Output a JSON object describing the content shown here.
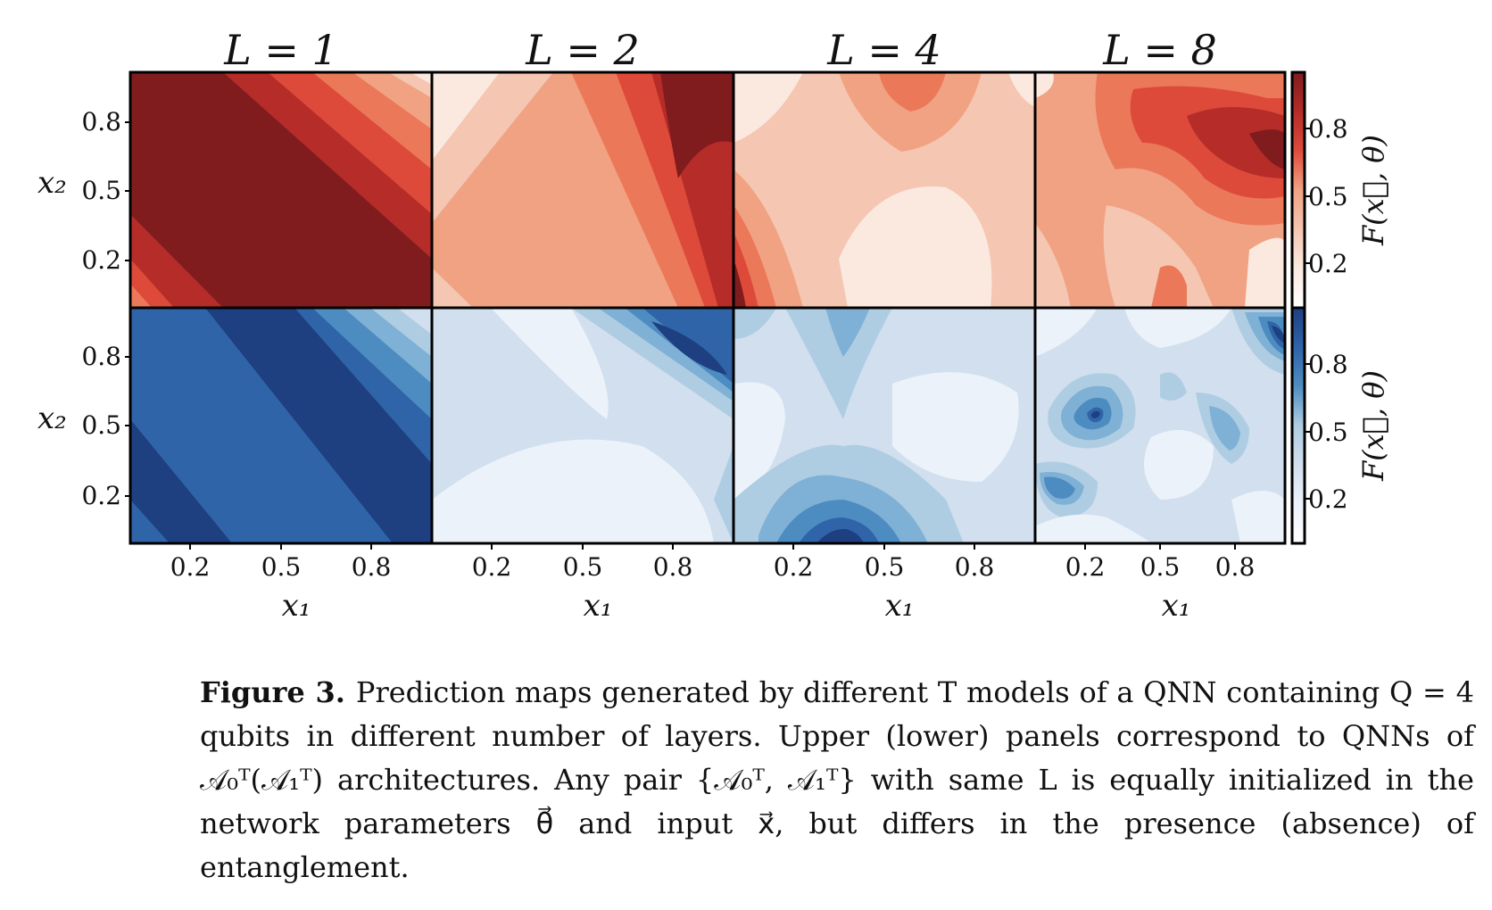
{
  "chart_data": {
    "type": "heatmap",
    "title": "",
    "column_titles": [
      "L = 1",
      "L = 2",
      "L = 4",
      "L = 8"
    ],
    "row_ylabel": "x₂",
    "xlabel": "x₁",
    "xticks": [
      "0.2",
      "0.5",
      "0.8"
    ],
    "yticks": [
      "0.8",
      "0.5",
      "0.2"
    ],
    "xtick_values": [
      0.2,
      0.5,
      0.8
    ],
    "ytick_values": [
      0.8,
      0.5,
      0.2
    ],
    "xlim": [
      0,
      1
    ],
    "ylim": [
      0,
      1
    ],
    "colorbar_label": "F(x⃗, θ)",
    "colorbar_ticks": [
      "0.8",
      "0.5",
      "0.2"
    ],
    "colorbar_tick_values": [
      0.8,
      0.5,
      0.2
    ],
    "rows": [
      {
        "name": "A0T (entangled)",
        "colormap": [
          "#fbe9e0",
          "#f5c6b1",
          "#f0a283",
          "#eb7858",
          "#dd4a3a",
          "#b52c29",
          "#801c1e"
        ],
        "panels": [
          {
            "L": 1,
            "description": "diagonal bands, high in lower-left to low in upper-right"
          },
          {
            "L": 2,
            "description": "diagonal bands, low in upper-left, high in upper-right"
          },
          {
            "L": 4,
            "description": "saddle shaped contours"
          },
          {
            "L": 8,
            "description": "wavy multi-lobe contours"
          }
        ]
      },
      {
        "name": "A1T (no entanglement)",
        "colormap": [
          "#ebf2fa",
          "#d1dfee",
          "#aecde2",
          "#7fb0d5",
          "#4d8cc0",
          "#2f64a8",
          "#1e3f80"
        ],
        "panels": [
          {
            "L": 1,
            "description": "mostly high, lighter band in upper-right corner"
          },
          {
            "L": 2,
            "description": "mostly low, dark band in upper-right"
          },
          {
            "L": 4,
            "description": "cross shaped contours, dark spot at bottom"
          },
          {
            "L": 8,
            "description": "multiple lobes with dark spot at left"
          }
        ]
      }
    ]
  },
  "caption": {
    "label": "Figure 3.",
    "text": "Prediction maps generated by different T models of a QNN containing Q = 4 qubits in different number of layers.  Upper (lower) panels correspond to QNNs of 𝒜₀ᵀ(𝒜₁ᵀ) architectures. Any pair {𝒜₀ᵀ, 𝒜₁ᵀ} with same L is equally initialized in the network parameters θ⃗ and input x⃗, but differs in the presence (absence) of entanglement."
  }
}
